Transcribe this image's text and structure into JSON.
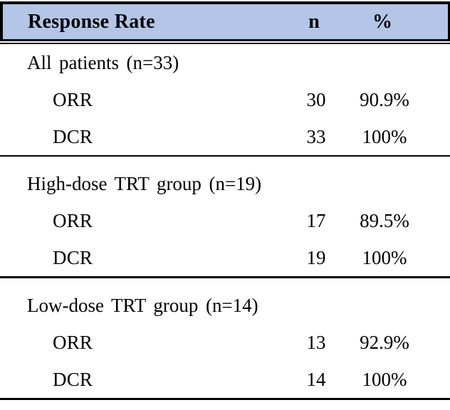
{
  "table": {
    "columns": [
      "Response Rate",
      "n",
      "%"
    ],
    "sections": [
      {
        "label": "All patients (n=33)",
        "rows": [
          {
            "measure": "ORR",
            "n": "30",
            "pct": "90.9%"
          },
          {
            "measure": "DCR",
            "n": "33",
            "pct": "100%"
          }
        ]
      },
      {
        "label": "High-dose TRT group (n=19)",
        "rows": [
          {
            "measure": "ORR",
            "n": "17",
            "pct": "89.5%"
          },
          {
            "measure": "DCR",
            "n": "19",
            "pct": "100%"
          }
        ]
      },
      {
        "label": "Low-dose TRT group (n=14)",
        "rows": [
          {
            "measure": "ORR",
            "n": "13",
            "pct": "92.9%"
          },
          {
            "measure": "DCR",
            "n": "14",
            "pct": "100%"
          }
        ]
      }
    ],
    "colors": {
      "header_bg": "#B4C6E7",
      "rule": "#000000",
      "text": "#000000"
    }
  },
  "chart_data": {
    "type": "table",
    "title": "Response Rate",
    "columns": [
      "Response Rate",
      "n",
      "%"
    ],
    "rows": [
      [
        "All patients (n=33)",
        "",
        ""
      ],
      [
        "ORR",
        30,
        "90.9%"
      ],
      [
        "DCR",
        33,
        "100%"
      ],
      [
        "High-dose TRT group (n=19)",
        "",
        ""
      ],
      [
        "ORR",
        17,
        "89.5%"
      ],
      [
        "DCR",
        19,
        "100%"
      ],
      [
        "Low-dose TRT group (n=14)",
        "",
        ""
      ],
      [
        "ORR",
        13,
        "92.9%"
      ],
      [
        "DCR",
        14,
        "100%"
      ]
    ]
  }
}
